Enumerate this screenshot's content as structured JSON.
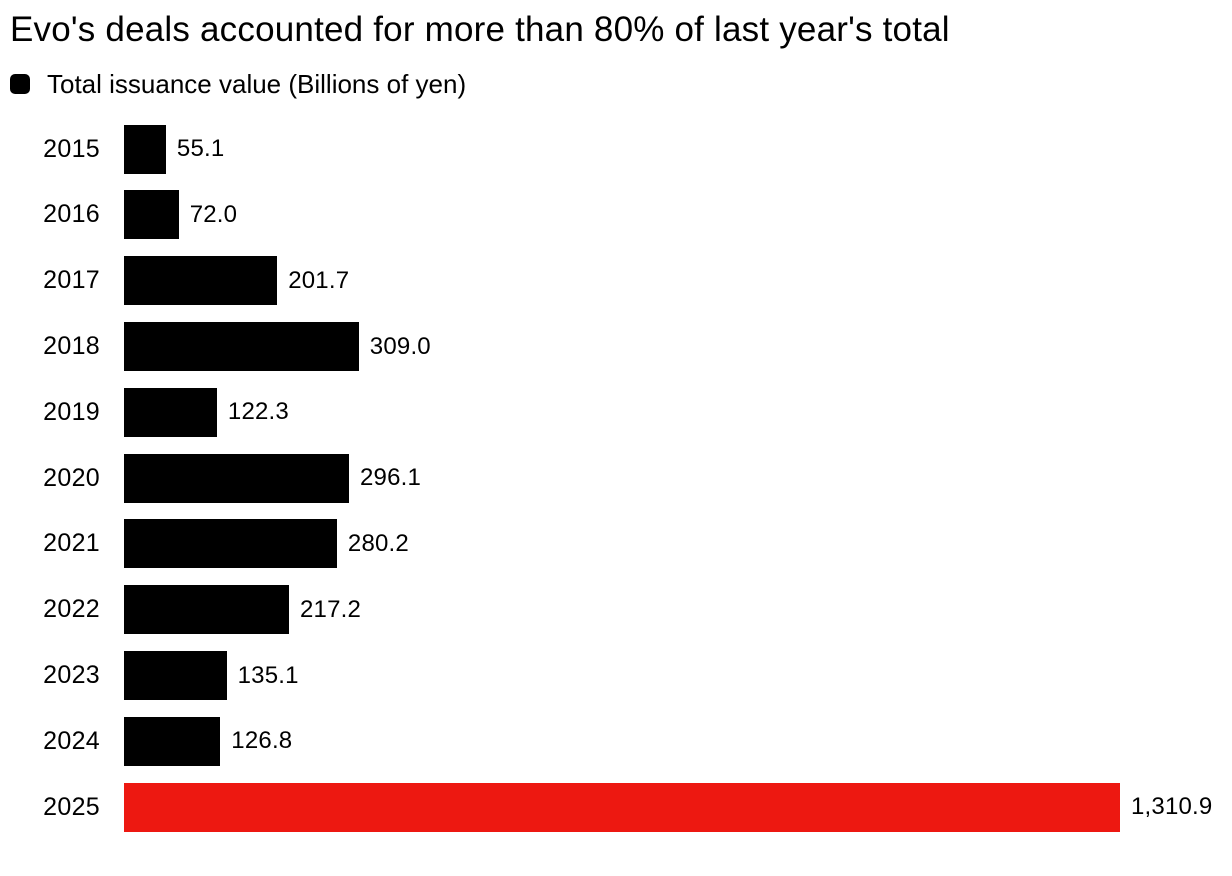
{
  "chart_data": {
    "type": "bar",
    "orientation": "horizontal",
    "title": "Evo's deals accounted for more than 80% of last year's total",
    "legend": "Total issuance value (Billions of yen)",
    "categories": [
      "2015",
      "2016",
      "2017",
      "2018",
      "2019",
      "2020",
      "2021",
      "2022",
      "2023",
      "2024",
      "2025"
    ],
    "values": [
      55.1,
      72.0,
      201.7,
      309.0,
      122.3,
      296.1,
      280.2,
      217.2,
      135.1,
      126.8,
      1310.9
    ],
    "value_labels": [
      "55.1",
      "72.0",
      "201.7",
      "309.0",
      "122.3",
      "296.1",
      "280.2",
      "217.2",
      "135.1",
      "126.8",
      "1,310.9"
    ],
    "xlim": [
      0,
      1310.9
    ],
    "grid": false,
    "legend_position": "top-left",
    "colors": {
      "bar_default": "#000000",
      "bar_highlight": "#ed1811",
      "text": "#000000",
      "background": "#ffffff"
    },
    "highlight_index": 10
  }
}
